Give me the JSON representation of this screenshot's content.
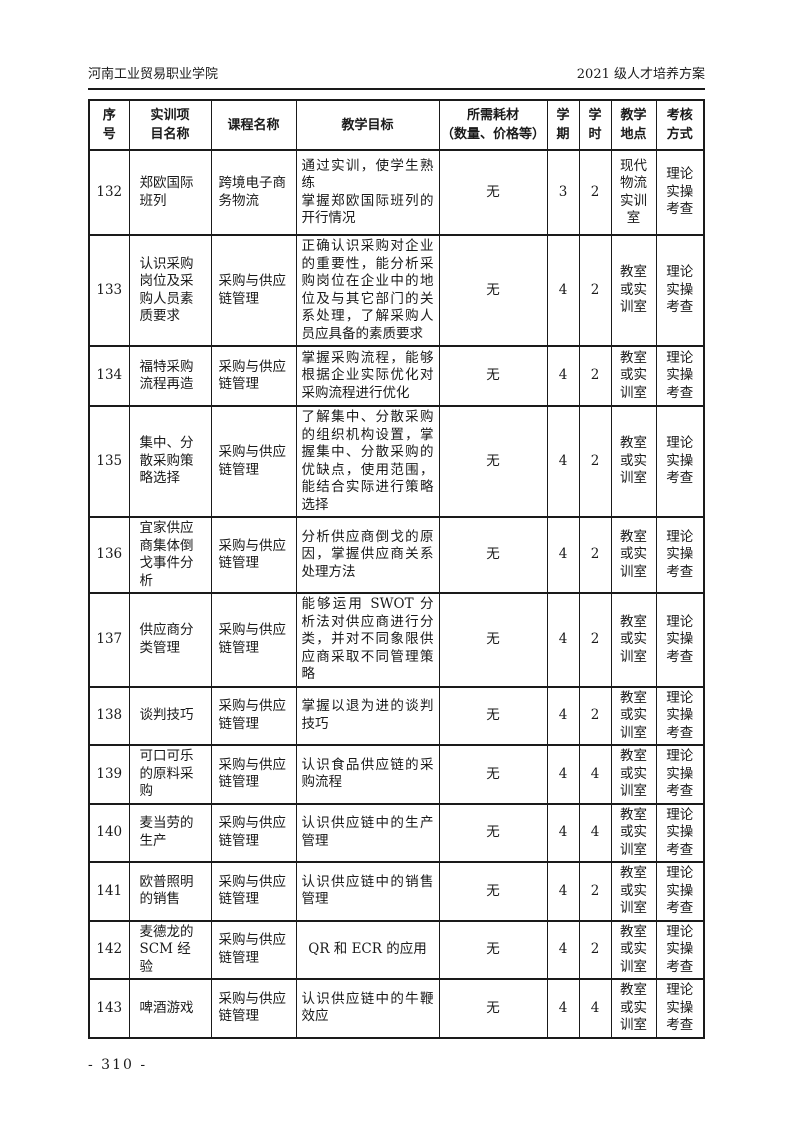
{
  "page_header": {
    "left": "河南工业贸易职业学院",
    "right": "2021 级人才培养方案"
  },
  "table": {
    "columns": [
      {
        "key": "no",
        "label": "序\n号"
      },
      {
        "key": "project",
        "label": "实训项\n目名称"
      },
      {
        "key": "course",
        "label": "课程名称"
      },
      {
        "key": "goal",
        "label": "教学目标"
      },
      {
        "key": "materials",
        "label": "所需耗材\n（数量、价格等）"
      },
      {
        "key": "semester",
        "label": "学\n期"
      },
      {
        "key": "hours",
        "label": "学\n时"
      },
      {
        "key": "location",
        "label": "教学\n地点"
      },
      {
        "key": "assessment",
        "label": "考核\n方式"
      }
    ],
    "rows": [
      {
        "no": "132",
        "project": "郑欧国际班列",
        "course": "跨境电子商务物流",
        "goal": "通过实训，使学生熟练\n掌握郑欧国际班列的开行情况",
        "materials": "无",
        "semester": "3",
        "hours": "2",
        "location": "现代物流实训室",
        "assessment": "理论实操考查"
      },
      {
        "no": "133",
        "project": "认识采购岗位及采购人员素质要求",
        "course": "采购与供应链管理",
        "goal": "正确认识采购对企业的重要性，能分析采购岗位在企业中的地位及与其它部门的关系处理，了解采购人员应具备的素质要求",
        "materials": "无",
        "semester": "4",
        "hours": "2",
        "location": "教室或实训室",
        "assessment": "理论实操考查"
      },
      {
        "no": "134",
        "project": "福特采购流程再造",
        "course": "采购与供应链管理",
        "goal": "掌握采购流程，能够根据企业实际优化对采购流程进行优化",
        "materials": "无",
        "semester": "4",
        "hours": "2",
        "location": "教室或实训室",
        "assessment": "理论实操考查"
      },
      {
        "no": "135",
        "project": "集中、分散采购策略选择",
        "course": "采购与供应链管理",
        "goal": "了解集中、分散采购的组织机构设置，掌握集中、分散采购的优缺点，使用范围，能结合实际进行策略选择",
        "materials": "无",
        "semester": "4",
        "hours": "2",
        "location": "教室或实训室",
        "assessment": "理论实操考查"
      },
      {
        "no": "136",
        "project": "宜家供应商集体倒戈事件分析",
        "course": "采购与供应链管理",
        "goal": "分析供应商倒戈的原因，掌握供应商关系处理方法",
        "materials": "无",
        "semester": "4",
        "hours": "2",
        "location": "教室或实训室",
        "assessment": "理论实操考查"
      },
      {
        "no": "137",
        "project": "供应商分类管理",
        "course": "采购与供应链管理",
        "goal": "能够运用 SWOT 分析法对供应商进行分类，并对不同象限供应商采取不同管理策略",
        "materials": "无",
        "semester": "4",
        "hours": "2",
        "location": "教室或实训室",
        "assessment": "理论实操考查"
      },
      {
        "no": "138",
        "project": "谈判技巧",
        "course": "采购与供应链管理",
        "goal": "掌握以退为进的谈判技巧",
        "materials": "无",
        "semester": "4",
        "hours": "2",
        "location": "教室或实训室",
        "assessment": "理论实操考查"
      },
      {
        "no": "139",
        "project": "可口可乐的原料采购",
        "course": "采购与供应链管理",
        "goal": "认识食品供应链的采购流程",
        "materials": "无",
        "semester": "4",
        "hours": "4",
        "location": "教室或实训室",
        "assessment": "理论实操考查"
      },
      {
        "no": "140",
        "project": "麦当劳的生产",
        "course": "采购与供应链管理",
        "goal": "认识供应链中的生产管理",
        "materials": "无",
        "semester": "4",
        "hours": "4",
        "location": "教室或实训室",
        "assessment": "理论实操考查"
      },
      {
        "no": "141",
        "project": "欧普照明的销售",
        "course": "采购与供应链管理",
        "goal": "认识供应链中的销售管理",
        "materials": "无",
        "semester": "4",
        "hours": "2",
        "location": "教室或实训室",
        "assessment": "理论实操考查"
      },
      {
        "no": "142",
        "project": "麦德龙的SCM 经验",
        "course": "采购与供应链管理",
        "goal": "QR 和 ECR 的应用",
        "goal_centered": true,
        "materials": "无",
        "semester": "4",
        "hours": "2",
        "location": "教室或实训室",
        "assessment": "理论实操考查"
      },
      {
        "no": "143",
        "project": "啤酒游戏",
        "course": "采购与供应链管理",
        "goal": "认识供应链中的牛鞭效应",
        "materials": "无",
        "semester": "4",
        "hours": "4",
        "location": "教室或实训室",
        "assessment": "理论实操考查"
      }
    ]
  },
  "footer": {
    "page_number": "- 310 -"
  }
}
